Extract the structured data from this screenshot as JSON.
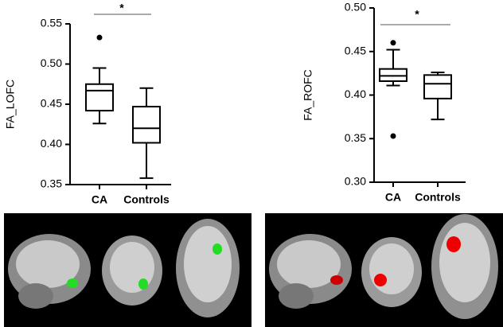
{
  "chart_data": [
    {
      "type": "box",
      "y_label": "FA_LOFC",
      "annotation": "*",
      "color": "#000000",
      "categories": [
        "CA",
        "Controls"
      ],
      "boxes": [
        {
          "whisker_low": 0.426,
          "q1": 0.442,
          "median": 0.467,
          "q3": 0.475,
          "whisker_high": 0.495,
          "outliers": [
            0.533
          ]
        },
        {
          "whisker_low": 0.358,
          "q1": 0.402,
          "median": 0.42,
          "q3": 0.447,
          "whisker_high": 0.47,
          "outliers": []
        }
      ],
      "ylim": [
        0.35,
        0.55
      ],
      "yticks": [
        0.35,
        {
          "value": 0.4,
          "label": "0.40"
        },
        0.45,
        {
          "value": 0.5,
          "label": "0.50"
        },
        0.55
      ]
    },
    {
      "type": "box",
      "y_label": "FA_ROFC",
      "annotation": "*",
      "color": "#000000",
      "categories": [
        "CA",
        "Controls"
      ],
      "boxes": [
        {
          "whisker_low": 0.411,
          "q1": 0.416,
          "median": 0.422,
          "q3": 0.43,
          "whisker_high": 0.452,
          "outliers": [
            0.46,
            0.353
          ]
        },
        {
          "whisker_low": 0.372,
          "q1": 0.396,
          "median": 0.413,
          "q3": 0.423,
          "whisker_high": 0.426,
          "outliers": []
        }
      ],
      "ylim": [
        0.3,
        0.5
      ],
      "yticks": [
        {
          "value": 0.3,
          "label": "0.30"
        },
        0.35,
        {
          "value": 0.4,
          "label": "0.40"
        },
        0.45,
        {
          "value": 0.5,
          "label": "0.50"
        }
      ]
    }
  ]
}
